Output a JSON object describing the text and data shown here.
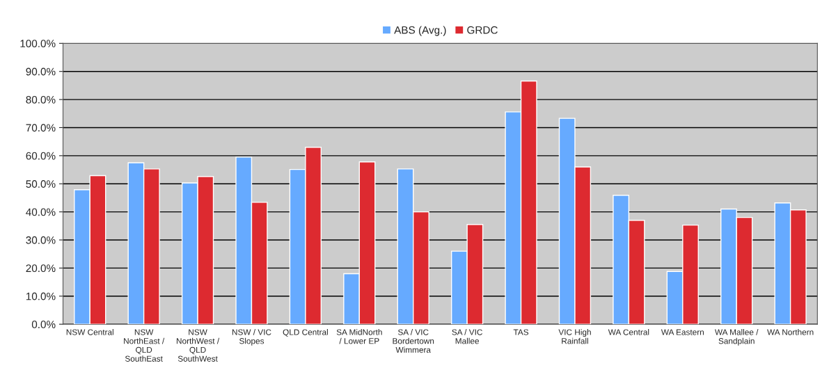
{
  "chart_data": {
    "type": "bar",
    "categories": [
      "NSW Central",
      "NSW\nNorthEast /\nQLD\nSouthEast",
      "NSW\nNorthWest /\nQLD\nSouthWest",
      "NSW / VIC\nSlopes",
      "QLD Central",
      "SA MidNorth\n/ Lower EP",
      "SA / VIC\nBordertown\nWimmera",
      "SA / VIC\nMallee",
      "TAS",
      "VIC High\nRainfall",
      "WA Central",
      "WA Eastern",
      "WA Mallee /\nSandplain",
      "WA Northern"
    ],
    "series": [
      {
        "name": "ABS (Avg.)",
        "color": "#66aaff",
        "values": [
          47.9,
          57.5,
          50.3,
          59.5,
          55.1,
          18.0,
          55.3,
          26.0,
          75.6,
          73.3,
          45.9,
          18.8,
          41.0,
          43.2
        ]
      },
      {
        "name": "GRDC",
        "color": "#dd2a30",
        "values": [
          52.9,
          55.3,
          52.6,
          43.4,
          63.0,
          57.8,
          40.0,
          35.5,
          86.6,
          56.0,
          37.0,
          35.3,
          38.0,
          40.7
        ]
      }
    ],
    "ylim": [
      0,
      100
    ],
    "yticks": [
      {
        "value": 0,
        "label": "0.0%"
      },
      {
        "value": 10,
        "label": "10.0%"
      },
      {
        "value": 20,
        "label": "20.0%"
      },
      {
        "value": 30,
        "label": "30.0%"
      },
      {
        "value": 40,
        "label": "40.0%"
      },
      {
        "value": 50,
        "label": "50.0%"
      },
      {
        "value": 60,
        "label": "60.0%"
      },
      {
        "value": 70,
        "label": "70.0%"
      },
      {
        "value": 80,
        "label": "80.0%"
      },
      {
        "value": 90,
        "label": "90.0%"
      },
      {
        "value": 100,
        "label": "100.0%"
      }
    ],
    "grid": "y",
    "legend": "top"
  }
}
